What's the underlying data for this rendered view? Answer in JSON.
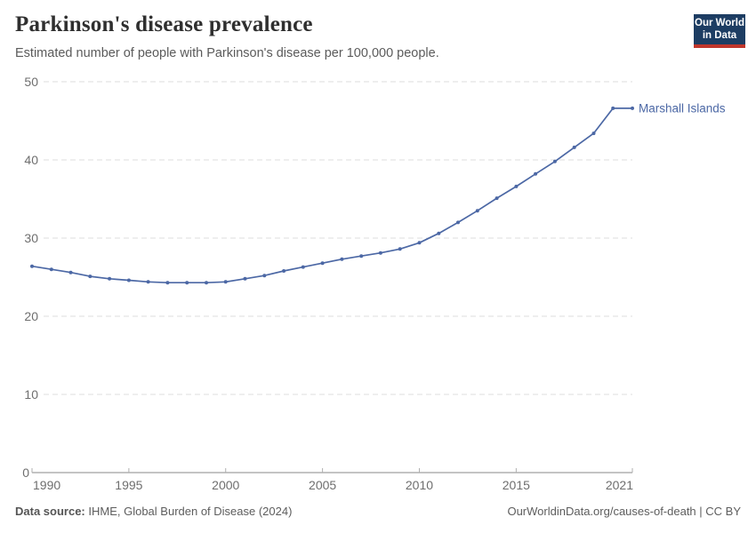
{
  "header": {
    "title": "Parkinson's disease prevalence",
    "subtitle": "Estimated number of people with Parkinson's disease per 100,000 people.",
    "logo": {
      "line1": "Our World",
      "line2": "in Data",
      "bg_color": "#1d3d63",
      "accent_color": "#c0362c"
    }
  },
  "chart_data": {
    "type": "line",
    "title": "Parkinson's disease prevalence",
    "subtitle": "Estimated number of people with Parkinson's disease per 100,000 people.",
    "xlabel": "",
    "ylabel": "",
    "xlim": [
      1990,
      2021
    ],
    "ylim": [
      0,
      50
    ],
    "xticks": [
      1990,
      1995,
      2000,
      2005,
      2010,
      2015,
      2021
    ],
    "yticks": [
      0,
      10,
      20,
      30,
      40,
      50
    ],
    "grid": "horizontal-dashed",
    "legend": "end-of-line-label",
    "x": [
      1990,
      1991,
      1992,
      1993,
      1994,
      1995,
      1996,
      1997,
      1998,
      1999,
      2000,
      2001,
      2002,
      2003,
      2004,
      2005,
      2006,
      2007,
      2008,
      2009,
      2010,
      2011,
      2012,
      2013,
      2014,
      2015,
      2016,
      2017,
      2018,
      2019,
      2020,
      2021
    ],
    "series": [
      {
        "name": "Marshall Islands",
        "color": "#4c68a5",
        "values": [
          26.4,
          26.0,
          25.6,
          25.1,
          24.8,
          24.6,
          24.4,
          24.3,
          24.3,
          24.3,
          24.4,
          24.8,
          25.2,
          25.8,
          26.3,
          26.8,
          27.3,
          27.7,
          28.1,
          28.6,
          29.4,
          30.6,
          32.0,
          33.5,
          35.1,
          36.6,
          38.2,
          39.8,
          41.6,
          43.4,
          46.6,
          46.6
        ]
      }
    ],
    "colors": {
      "grid": "#dcdcdc",
      "axis": "#8a8a8a",
      "tick": "#afafaf",
      "tick_label": "#6e6e6e"
    }
  },
  "footer": {
    "datasource_label": "Data source:",
    "datasource_value": "IHME, Global Burden of Disease (2024)",
    "attribution": "OurWorldinData.org/causes-of-death | CC BY"
  }
}
